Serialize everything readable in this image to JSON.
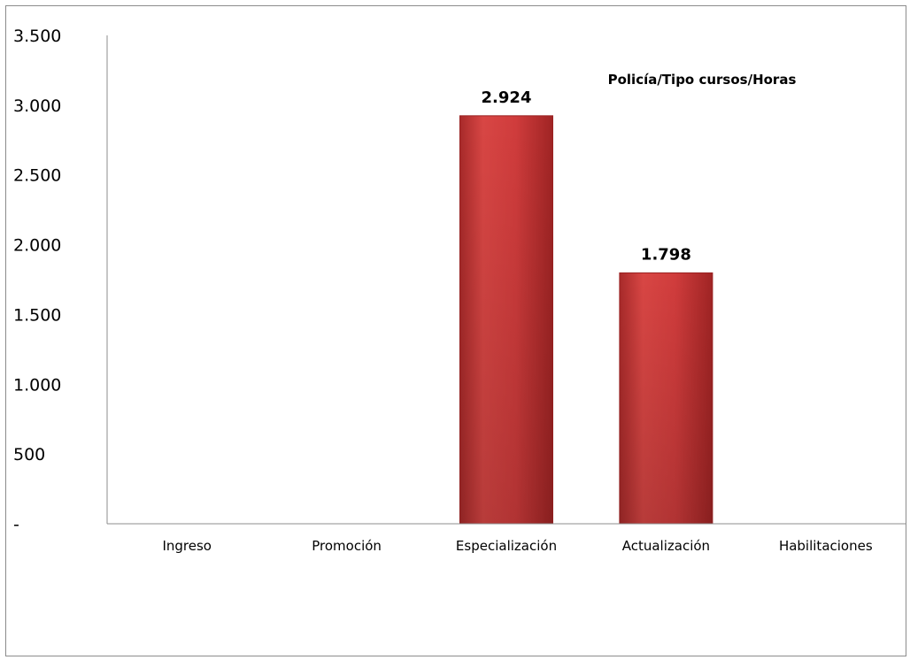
{
  "chart_data": {
    "type": "bar",
    "title": "Policía/Tipo cursos/Horas",
    "categories": [
      "Ingreso",
      "Promoción",
      "Especialización",
      "Actualización",
      "Habilitaciones"
    ],
    "values": [
      0,
      0,
      2924,
      1798,
      0
    ],
    "data_labels": [
      "",
      "",
      "2.924",
      "1.798",
      ""
    ],
    "ylim": [
      0,
      3500
    ],
    "yticks": [
      0,
      500,
      1000,
      1500,
      2000,
      2500,
      3000,
      3500
    ],
    "ytick_labels": [
      "-",
      "500",
      "1.000",
      "1.500",
      "2.000",
      "2.500",
      "3.000",
      "3.500"
    ],
    "grid": false,
    "legend": "none",
    "bar_color": "#c0393a"
  }
}
